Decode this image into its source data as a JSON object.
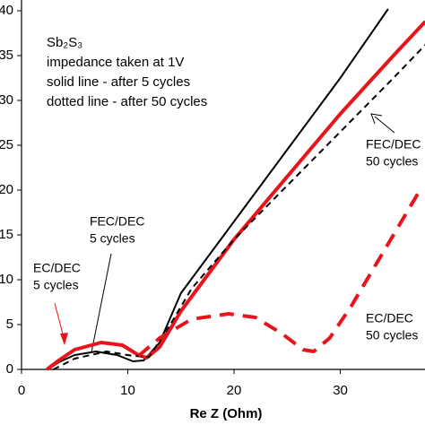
{
  "chart_data": {
    "type": "line",
    "xlabel": "Re Z (Ohm)",
    "xlim": [
      0,
      37.97
    ],
    "ylim": [
      0,
      41.2
    ],
    "xticks": [
      0,
      10,
      20,
      30
    ],
    "yticks": [
      0,
      5,
      10,
      15,
      20,
      25,
      30,
      35,
      40
    ],
    "series": [
      {
        "name": "FEC/DEC 5 cycles",
        "color": "#000000",
        "dash": false,
        "x": [
          2.5,
          3.5,
          5,
          7,
          9,
          10.5,
          11.5,
          13,
          15,
          20,
          25,
          30,
          34.5
        ],
        "values": [
          0,
          0.8,
          1.6,
          2.0,
          1.6,
          0.9,
          1.0,
          3.0,
          8.5,
          16.5,
          24.5,
          32.5,
          40.2
        ]
      },
      {
        "name": "EC/DEC 5 cycles",
        "color": "#e8141c",
        "dash": false,
        "x": [
          2.4,
          3.5,
          5,
          7.5,
          9.5,
          11,
          11.8,
          13,
          15,
          20,
          25,
          30,
          35,
          38
        ],
        "values": [
          0,
          1.0,
          2.2,
          3.0,
          2.7,
          1.6,
          1.3,
          2.5,
          6.5,
          14.5,
          21.5,
          28.5,
          35,
          38.8
        ]
      },
      {
        "name": "FEC/DEC 50 cycles",
        "color": "#000000",
        "dash": true,
        "x": [
          3,
          5,
          8,
          10.5,
          12,
          14,
          16,
          20,
          25,
          30,
          35,
          38
        ],
        "values": [
          0,
          1.2,
          2.0,
          1.5,
          1.4,
          5,
          9,
          14.5,
          20.5,
          26.5,
          32.5,
          36.2
        ]
      },
      {
        "name": "EC/DEC 50 cycles",
        "color": "#e8141c",
        "dash": true,
        "x": [
          11,
          13,
          16,
          19.5,
          22,
          24.5,
          26.5,
          27.5,
          29,
          31,
          34,
          37.5
        ],
        "values": [
          1.5,
          3.5,
          5.6,
          6.2,
          5.8,
          4.0,
          2.2,
          2.0,
          3.5,
          7,
          13,
          20
        ]
      }
    ],
    "info_lines": [
      "Sb₂S₃",
      "impedance taken at 1V",
      "solid line - after 5 cycles",
      "dotted line - after 50 cycles"
    ],
    "annotations": [
      {
        "lines": [
          "FEC/DEC",
          "5 cycles"
        ]
      },
      {
        "lines": [
          "EC/DEC",
          "5 cycles"
        ]
      },
      {
        "lines": [
          "FEC/DEC",
          "50 cycles"
        ]
      },
      {
        "lines": [
          "EC/DEC",
          "50 cycles"
        ]
      }
    ]
  }
}
